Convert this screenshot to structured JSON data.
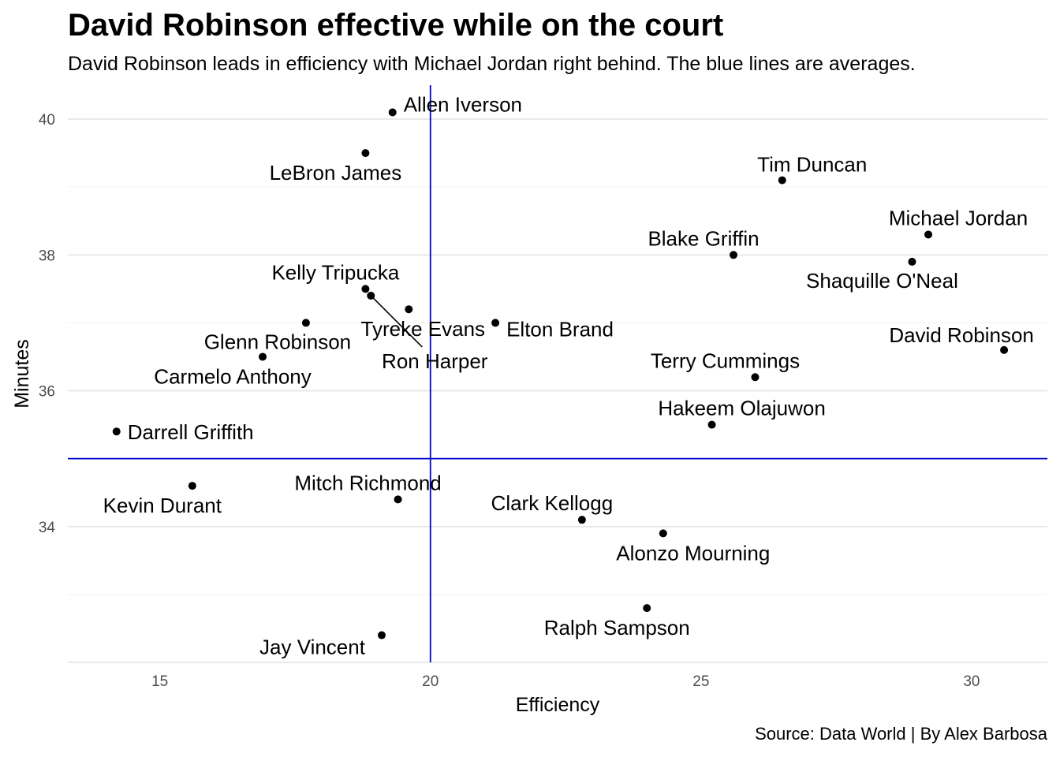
{
  "chart_data": {
    "type": "scatter",
    "title": "David Robinson effective while on the court",
    "subtitle": "David Robinson leads in efficiency with Michael Jordan right behind. The blue lines are averages.",
    "caption": "Source: Data World | By Alex Barbosa",
    "xlabel": "Efficiency",
    "ylabel": "Minutes",
    "xlim": [
      13.3,
      31.4
    ],
    "ylim": [
      32.0,
      40.5
    ],
    "x_ticks": [
      15,
      20,
      25,
      30
    ],
    "y_ticks": [
      34,
      36,
      38,
      40
    ],
    "grid": true,
    "reference_lines": {
      "x": 20,
      "y": 35,
      "color": "#0000cc"
    },
    "point_color": "#000000",
    "points": [
      {
        "name": "Allen Iverson",
        "x": 19.3,
        "y": 40.1
      },
      {
        "name": "LeBron James",
        "x": 18.8,
        "y": 39.5
      },
      {
        "name": "Tim Duncan",
        "x": 26.5,
        "y": 39.1
      },
      {
        "name": "Michael Jordan",
        "x": 29.2,
        "y": 38.3
      },
      {
        "name": "Blake Griffin",
        "x": 25.6,
        "y": 38.0
      },
      {
        "name": "Shaquille O'Neal",
        "x": 28.9,
        "y": 37.9
      },
      {
        "name": "Kelly Tripucka",
        "x": 18.8,
        "y": 37.5
      },
      {
        "name": "Ron Harper",
        "x": 18.9,
        "y": 37.4
      },
      {
        "name": "Tyreke Evans",
        "x": 19.6,
        "y": 37.2
      },
      {
        "name": "Glenn Robinson",
        "x": 17.7,
        "y": 37.0
      },
      {
        "name": "Elton Brand",
        "x": 21.2,
        "y": 37.0
      },
      {
        "name": "David Robinson",
        "x": 30.6,
        "y": 36.6
      },
      {
        "name": "Carmelo Anthony",
        "x": 16.9,
        "y": 36.5
      },
      {
        "name": "Terry Cummings",
        "x": 26.0,
        "y": 36.2
      },
      {
        "name": "Hakeem Olajuwon",
        "x": 25.2,
        "y": 35.5
      },
      {
        "name": "Darrell Griffith",
        "x": 14.2,
        "y": 35.4
      },
      {
        "name": "Kevin Durant",
        "x": 15.6,
        "y": 34.6
      },
      {
        "name": "Mitch Richmond",
        "x": 19.4,
        "y": 34.4
      },
      {
        "name": "Clark Kellogg",
        "x": 22.8,
        "y": 34.1
      },
      {
        "name": "Alonzo Mourning",
        "x": 24.3,
        "y": 33.9
      },
      {
        "name": "Ralph Sampson",
        "x": 24.0,
        "y": 32.8
      },
      {
        "name": "Jay Vincent",
        "x": 19.1,
        "y": 32.4
      }
    ]
  }
}
